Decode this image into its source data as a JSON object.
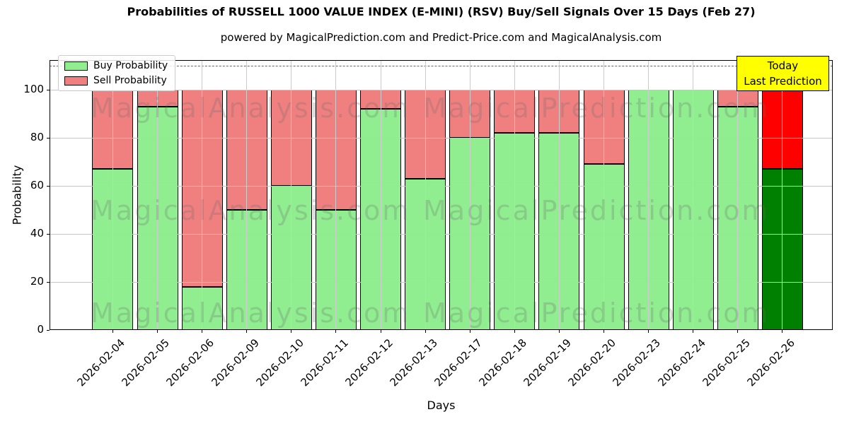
{
  "title": "Probabilities of RUSSELL 1000 VALUE INDEX (E-MINI) (RSV) Buy/Sell Signals Over 15 Days (Feb 27)",
  "subtitle": "powered by MagicalPrediction.com and Predict-Price.com and MagicalAnalysis.com",
  "legend": {
    "items": [
      {
        "label": "Buy Probability",
        "color": "#90EE90"
      },
      {
        "label": "Sell Probability",
        "color": "#F08080"
      }
    ]
  },
  "annotation": {
    "line1": "Today",
    "line2": "Last Prediction",
    "bg": "#FFFF00",
    "border": "#000000"
  },
  "watermarks": [
    "MagicalAnalysis.com",
    "MagicalPrediction.com"
  ],
  "colors": {
    "buy": "#90EE90",
    "sell": "#F08080",
    "today_buy": "#008000",
    "today_sell": "#FF0000",
    "bar_edge": "#000000",
    "annotation_bg": "#FFFF00",
    "grid": "#c6c6c6",
    "background": "#ffffff"
  },
  "chart_data": {
    "type": "bar",
    "stacked": true,
    "title": "Probabilities of RUSSELL 1000 VALUE INDEX (E-MINI) (RSV) Buy/Sell Signals Over 15 Days (Feb 27)",
    "xlabel": "Days",
    "ylabel": "Probability",
    "categories": [
      "2026-02-04",
      "2026-02-05",
      "2026-02-06",
      "2026-02-09",
      "2026-02-10",
      "2026-02-11",
      "2026-02-12",
      "2026-02-13",
      "2026-02-17",
      "2026-02-18",
      "2026-02-19",
      "2026-02-20",
      "2026-02-23",
      "2026-02-24",
      "2026-02-25",
      "2026-02-26"
    ],
    "series": [
      {
        "name": "Buy Probability",
        "color": "#90EE90",
        "values": [
          67,
          93,
          18,
          50,
          60,
          50,
          92,
          63,
          80,
          82,
          82,
          69,
          100,
          100,
          93,
          67
        ]
      },
      {
        "name": "Sell Probability",
        "color": "#F08080",
        "values": [
          33,
          7,
          82,
          50,
          40,
          50,
          8,
          37,
          20,
          18,
          18,
          31,
          0,
          0,
          7,
          33
        ]
      }
    ],
    "today_index": 15,
    "today_colors": {
      "buy": "#008000",
      "sell": "#FF0000"
    },
    "ylim": [
      0,
      112
    ],
    "yticks": [
      0,
      20,
      40,
      60,
      80,
      100
    ],
    "dashed_line_y": 110,
    "grid": true,
    "legend_position": "upper left",
    "x_tick_rotation": 45
  }
}
